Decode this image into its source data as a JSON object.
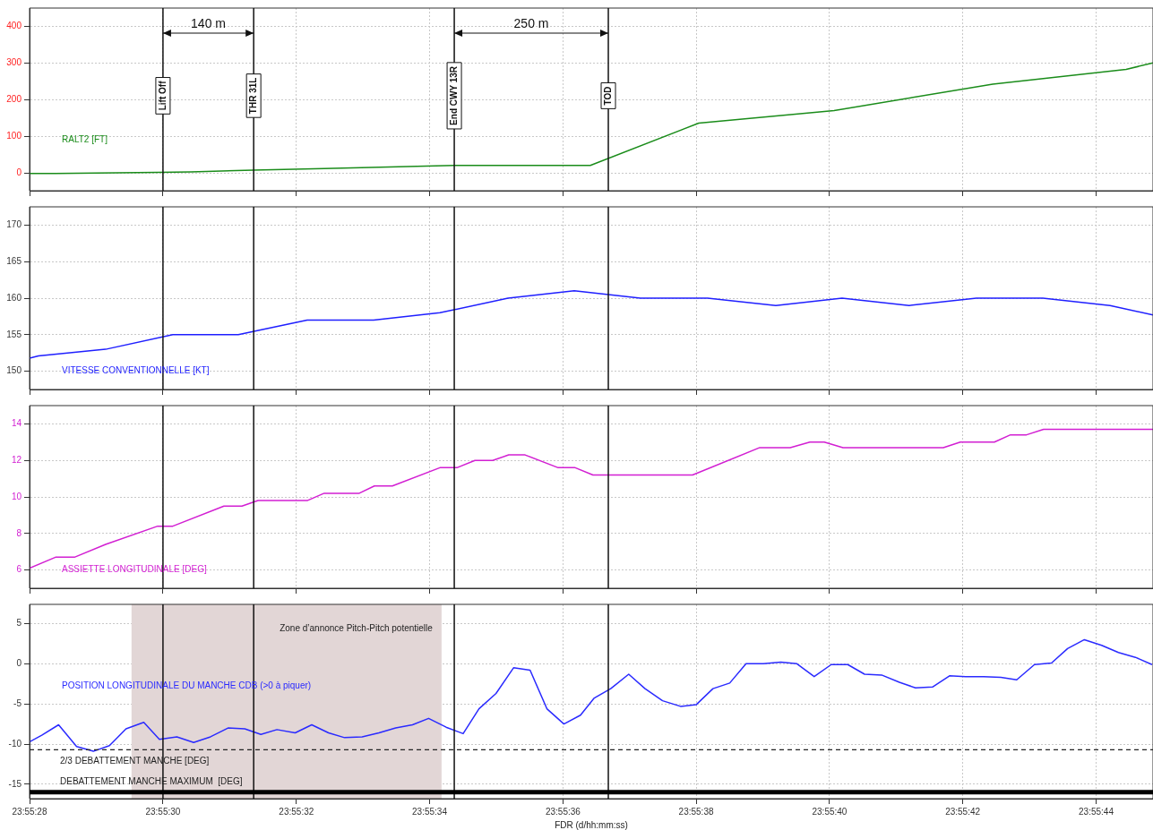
{
  "chart_data": [
    {
      "type": "line",
      "xlim": [
        23.924444,
        23.929126
      ],
      "ylim": [
        -47,
        450
      ],
      "yticks": [
        0,
        100,
        200,
        300,
        400
      ],
      "grid": true,
      "legend": false,
      "tick_labels": "y",
      "xticks": [
        {
          "value": 23.924444,
          "label": null
        },
        {
          "value": 23.925,
          "label": null
        },
        {
          "value": 23.925556,
          "label": null
        },
        {
          "value": 23.926111,
          "label": null
        },
        {
          "value": 23.926667,
          "label": null
        },
        {
          "value": 23.927222,
          "label": null
        },
        {
          "value": 23.927778,
          "label": null
        },
        {
          "value": 23.928333,
          "label": null
        },
        {
          "value": 23.928889,
          "label": null
        }
      ],
      "series": [
        {
          "name": "RALT2 [FT]",
          "color": "#1a8c1a",
          "x": [
            23.924444,
            23.924552,
            23.924978,
            23.925116,
            23.925377,
            23.925672,
            23.926214,
            23.926781,
            23.927233,
            23.927797,
            23.928458,
            23.929014,
            23.929126
          ],
          "values": [
            0,
            0,
            3,
            4,
            9,
            13,
            22,
            22,
            137,
            171,
            243,
            283,
            301
          ]
        }
      ],
      "ref_lines": [
        {
          "axis": "x",
          "value": 23.925,
          "label": "Lift Off"
        },
        {
          "axis": "x",
          "value": 23.925378,
          "label": "THR 31L"
        },
        {
          "axis": "x",
          "value": 23.926214,
          "label": "End CWY 13R"
        },
        {
          "axis": "x",
          "value": 23.926856,
          "label": "TOD"
        }
      ],
      "annotations": [
        "140 m",
        "250 m"
      ]
    },
    {
      "type": "line",
      "xlim": [
        23.924444,
        23.929126
      ],
      "ylim": [
        147.5,
        172.5
      ],
      "yticks": [
        150,
        155,
        160,
        165,
        170
      ],
      "grid": true,
      "legend": false,
      "tick_labels": "y",
      "xticks": [
        {
          "value": 23.924444,
          "label": null
        },
        {
          "value": 23.925,
          "label": null
        },
        {
          "value": 23.925556,
          "label": null
        },
        {
          "value": 23.926111,
          "label": null
        },
        {
          "value": 23.926667,
          "label": null
        },
        {
          "value": 23.927222,
          "label": null
        },
        {
          "value": 23.927778,
          "label": null
        },
        {
          "value": 23.928333,
          "label": null
        },
        {
          "value": 23.928889,
          "label": null
        }
      ],
      "series": [
        {
          "name": "VITESSE CONVENTIONNELLE [KT]",
          "color": "#1f1fff",
          "x": [
            23.924444,
            23.924481,
            23.924761,
            23.925041,
            23.925314,
            23.925601,
            23.925878,
            23.926154,
            23.926438,
            23.926714,
            23.92699,
            23.92727,
            23.927554,
            23.92783,
            23.92811,
            23.92839,
            23.928667,
            23.928947,
            23.929126
          ],
          "values": [
            151.8,
            152.1,
            153,
            155,
            155,
            157,
            157,
            158,
            160,
            161,
            160,
            160,
            159,
            160,
            159,
            160,
            160,
            159,
            157.7
          ]
        }
      ],
      "ref_lines": [
        {
          "axis": "x",
          "value": 23.925
        },
        {
          "axis": "x",
          "value": 23.925378
        },
        {
          "axis": "x",
          "value": 23.926214
        },
        {
          "axis": "x",
          "value": 23.926856
        }
      ]
    },
    {
      "type": "line",
      "xlim": [
        23.924444,
        23.929126
      ],
      "ylim": [
        5,
        15
      ],
      "yticks": [
        6,
        8,
        10,
        12,
        14
      ],
      "grid": true,
      "legend": false,
      "tick_labels": "y",
      "xticks": [
        {
          "value": 23.924444,
          "label": null
        },
        {
          "value": 23.925,
          "label": null
        },
        {
          "value": 23.925556,
          "label": null
        },
        {
          "value": 23.926111,
          "label": null
        },
        {
          "value": 23.926667,
          "label": null
        },
        {
          "value": 23.927222,
          "label": null
        },
        {
          "value": 23.927778,
          "label": null
        },
        {
          "value": 23.928333,
          "label": null
        },
        {
          "value": 23.928889,
          "label": null
        }
      ],
      "series": [
        {
          "name": "ASSIETTE LONGITUDINALE [DEG]",
          "color": "#d21fd2",
          "x": [
            23.924444,
            23.924552,
            23.924631,
            23.924761,
            23.924978,
            23.925041,
            23.925254,
            23.925329,
            23.925396,
            23.925601,
            23.925672,
            23.925818,
            23.925881,
            23.925956,
            23.926154,
            23.926225,
            23.9263,
            23.926374,
            23.926441,
            23.926509,
            23.926647,
            23.926718,
            23.926792,
            23.927207,
            23.927487,
            23.927614,
            23.927696,
            23.927756,
            23.927834,
            23.928252,
            23.928323,
            23.928465,
            23.928532,
            23.928599,
            23.92867,
            23.929126
          ],
          "values": [
            6.1,
            6.7,
            6.7,
            7.4,
            8.4,
            8.4,
            9.5,
            9.5,
            9.8,
            9.8,
            10.2,
            10.2,
            10.6,
            10.6,
            11.6,
            11.6,
            12,
            12,
            12.3,
            12.3,
            11.6,
            11.6,
            11.2,
            11.2,
            12.7,
            12.7,
            13,
            13,
            12.7,
            12.7,
            13,
            13,
            13.4,
            13.4,
            13.7,
            13.7
          ]
        }
      ],
      "ref_lines": [
        {
          "axis": "x",
          "value": 23.925
        },
        {
          "axis": "x",
          "value": 23.925378
        },
        {
          "axis": "x",
          "value": 23.926214
        },
        {
          "axis": "x",
          "value": 23.926856
        }
      ]
    },
    {
      "type": "line",
      "xlim": [
        23.924444,
        23.929126
      ],
      "ylim": [
        -16.8,
        7.4
      ],
      "yticks": [
        -15,
        -10,
        -5,
        0,
        5
      ],
      "grid": true,
      "legend": false,
      "xlabel": "FDR (d/hh:mm:ss)",
      "xticks": [
        {
          "value": 23.924444,
          "label": "23:55:28"
        },
        {
          "value": 23.925,
          "label": "23:55:30"
        },
        {
          "value": 23.925556,
          "label": "23:55:32"
        },
        {
          "value": 23.926111,
          "label": "23:55:34"
        },
        {
          "value": 23.926667,
          "label": "23:55:36"
        },
        {
          "value": 23.927222,
          "label": "23:55:38"
        },
        {
          "value": 23.927778,
          "label": "23:55:40"
        },
        {
          "value": 23.928333,
          "label": "23:55:42"
        },
        {
          "value": 23.928889,
          "label": "23:55:44"
        }
      ],
      "series": [
        {
          "name": "POSITION LONGITUDINALE DU MANCHE CDB (>0 à piquer)",
          "color": "#2a2aff",
          "x": [
            23.924445,
            23.924495,
            23.924565,
            23.92464,
            23.92471,
            23.924777,
            23.924846,
            23.92492,
            23.924985,
            23.925058,
            23.925128,
            23.925198,
            23.925271,
            23.925341,
            23.925408,
            23.925475,
            23.925551,
            23.92562,
            23.92569,
            23.925757,
            23.92583,
            23.9259,
            23.92597,
            23.92604,
            23.926107,
            23.92618,
            23.926251,
            23.926317,
            23.926388,
            23.926461,
            23.92653,
            23.9266,
            23.926671,
            23.92674,
            23.926796,
            23.926866,
            23.926941,
            23.927009,
            23.927082,
            23.927157,
            23.927222,
            23.927292,
            23.927362,
            23.92743,
            23.927502,
            23.927575,
            23.927642,
            23.927714,
            23.927785,
            23.927854,
            23.927924,
            23.927995,
            23.928069,
            23.928136,
            23.928207,
            23.928278,
            23.928345,
            23.92842,
            23.928492,
            23.928558,
            23.928632,
            23.928703,
            23.92877,
            23.92884,
            23.928912,
            23.928982,
            23.929053,
            23.929122
          ],
          "values": [
            -9.7,
            -8.9,
            -7.6,
            -10.3,
            -10.9,
            -10.2,
            -8.1,
            -7.3,
            -9.4,
            -9.1,
            -9.8,
            -9.1,
            -8,
            -8.1,
            -8.8,
            -8.2,
            -8.6,
            -7.6,
            -8.6,
            -9.2,
            -9.1,
            -8.6,
            -8,
            -7.6,
            -6.8,
            -7.9,
            -8.7,
            -5.6,
            -3.7,
            -0.5,
            -0.8,
            -5.6,
            -7.5,
            -6.4,
            -4.3,
            -3.1,
            -1.3,
            -3.1,
            -4.6,
            -5.3,
            -5.1,
            -3.1,
            -2.4,
            0,
            0,
            0.2,
            0,
            -1.6,
            -0.1,
            -0.1,
            -1.3,
            -1.4,
            -2.3,
            -3,
            -2.9,
            -1.5,
            -1.6,
            -1.6,
            -1.7,
            -2,
            -0.1,
            0.1,
            1.9,
            3,
            2.3,
            1.4,
            0.8,
            -0.1
          ]
        }
      ],
      "ref_lines": [
        {
          "axis": "x",
          "value": 23.925
        },
        {
          "axis": "x",
          "value": 23.925378
        },
        {
          "axis": "x",
          "value": 23.926214
        },
        {
          "axis": "x",
          "value": 23.926856
        },
        {
          "axis": "y",
          "value": -10.7,
          "label": "2/3 DEBATTEMENT MANCHE [DEG]",
          "line_style": "dashed",
          "color": "#222222"
        },
        {
          "axis": "y",
          "value": -16,
          "label": "DEBATTEMENT MANCHE MAXIMUM  [DEG]",
          "line_style": "solid",
          "color": "#000000"
        }
      ],
      "bands": [
        {
          "axis": "x",
          "from": 23.924869,
          "to": 23.926161,
          "label": "Zone d’annonce Pitch-Pitch potentielle",
          "color": "#e2d6d6"
        }
      ]
    }
  ]
}
